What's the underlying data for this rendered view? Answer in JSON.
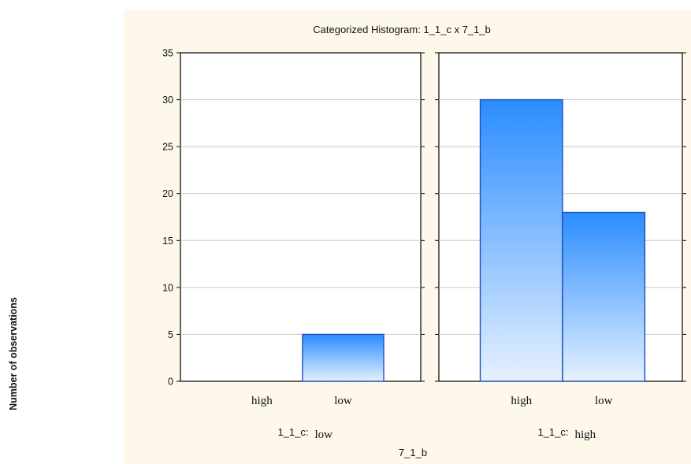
{
  "chart_data": {
    "type": "bar",
    "title": "Categorized Histogram: 1_1_c x 7_1_b",
    "ylabel": "Number of observations",
    "xlabel": "7_1_b",
    "ylim": [
      0,
      35
    ],
    "yticks": [
      "0",
      "5",
      "10",
      "15",
      "20",
      "25",
      "30",
      "35"
    ],
    "grid": true,
    "panels": [
      {
        "category_var": "1_1_c:",
        "category_value": "low",
        "categories": [
          "high",
          "low"
        ],
        "values": [
          0,
          5
        ]
      },
      {
        "category_var": "1_1_c:",
        "category_value": "high",
        "categories": [
          "high",
          "low"
        ],
        "values": [
          30,
          18
        ]
      }
    ],
    "colors": {
      "bar_top": "#2a8cff",
      "bar_bottom": "#e6f1ff",
      "bar_edge": "#1a4fbf",
      "background": "#fdf8ea"
    }
  }
}
